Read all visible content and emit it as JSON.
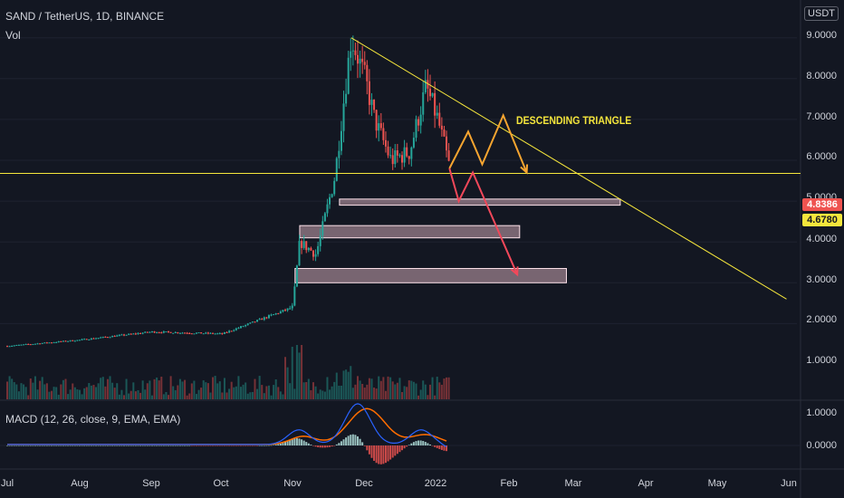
{
  "header": {
    "symbol_line": "SAND / TetherUS, 1D, BINANCE",
    "volume_label": "Vol",
    "currency": "USDT"
  },
  "macd": {
    "label": "MACD (12, 26, close, 9, EMA, EMA)",
    "y_ticks": [
      "1.0000",
      "0.0000"
    ]
  },
  "price_axis": {
    "ticks": [
      "9.0000",
      "8.0000",
      "7.0000",
      "6.0000",
      "5.0000",
      "4.0000",
      "3.0000",
      "2.0000",
      "1.0000"
    ],
    "current_price": "4.8386",
    "marked_price": "4.6780"
  },
  "time_axis": {
    "ticks": [
      "Jul",
      "Aug",
      "Sep",
      "Oct",
      "Nov",
      "Dec",
      "2022",
      "Feb",
      "Mar",
      "Apr",
      "May",
      "Jun"
    ]
  },
  "annotation": {
    "text": "DESCENDING TRIANGLE"
  },
  "colors": {
    "background": "#131722",
    "up": "#26a69a",
    "down": "#ef5350",
    "trendline": "#f5e63c",
    "orange_path": "#f7a530",
    "red_path": "#f2485a",
    "zone_fill": "#f3c6d2",
    "macd_line": "#2962ff",
    "signal_line": "#ff6d00"
  },
  "chart_data": {
    "type": "candlestick",
    "title": "SAND / TetherUS, 1D, BINANCE",
    "xlabel": "",
    "ylabel": "USDT",
    "ylim": [
      0,
      9.5
    ],
    "x_ticks": [
      "Jul",
      "Aug",
      "Sep",
      "Oct",
      "Nov",
      "Dec",
      "2022",
      "Feb",
      "Mar",
      "Apr",
      "May",
      "Jun"
    ],
    "approx_close_path": [
      {
        "date": "2021-07-01",
        "close": 0.45
      },
      {
        "date": "2021-08-01",
        "close": 0.6
      },
      {
        "date": "2021-09-01",
        "close": 0.8
      },
      {
        "date": "2021-10-01",
        "close": 0.75
      },
      {
        "date": "2021-10-31",
        "close": 1.4
      },
      {
        "date": "2021-11-03",
        "close": 3.0
      },
      {
        "date": "2021-11-10",
        "close": 2.7
      },
      {
        "date": "2021-11-18",
        "close": 4.6
      },
      {
        "date": "2021-11-25",
        "close": 8.0
      },
      {
        "date": "2021-12-01",
        "close": 7.0
      },
      {
        "date": "2021-12-05",
        "close": 6.0
      },
      {
        "date": "2021-12-12",
        "close": 5.0
      },
      {
        "date": "2021-12-20",
        "close": 5.2
      },
      {
        "date": "2021-12-27",
        "close": 6.8
      },
      {
        "date": "2022-01-01",
        "close": 6.0
      },
      {
        "date": "2022-01-06",
        "close": 4.84
      }
    ],
    "trendline": [
      {
        "date": "2021-11-25",
        "price": 8.0
      },
      {
        "date": "2022-06-01",
        "price": 1.6
      }
    ],
    "horizontal_line": 4.678,
    "zones": [
      {
        "from": "2021-11-20",
        "to": "2022-03-20",
        "low": 3.9,
        "high": 4.05
      },
      {
        "from": "2021-11-03",
        "to": "2022-02-05",
        "low": 3.1,
        "high": 3.4
      },
      {
        "from": "2021-11-01",
        "to": "2022-02-25",
        "low": 2.0,
        "high": 2.35
      }
    ],
    "scenario_orange": [
      {
        "date": "2022-01-06",
        "price": 4.8
      },
      {
        "date": "2022-01-14",
        "price": 5.7
      },
      {
        "date": "2022-01-20",
        "price": 4.9
      },
      {
        "date": "2022-01-29",
        "price": 6.1
      },
      {
        "date": "2022-02-08",
        "price": 4.7
      }
    ],
    "scenario_red": [
      {
        "date": "2022-01-06",
        "price": 4.8
      },
      {
        "date": "2022-01-10",
        "price": 4.0
      },
      {
        "date": "2022-01-16",
        "price": 4.7
      },
      {
        "date": "2022-02-04",
        "price": 2.2
      }
    ]
  }
}
